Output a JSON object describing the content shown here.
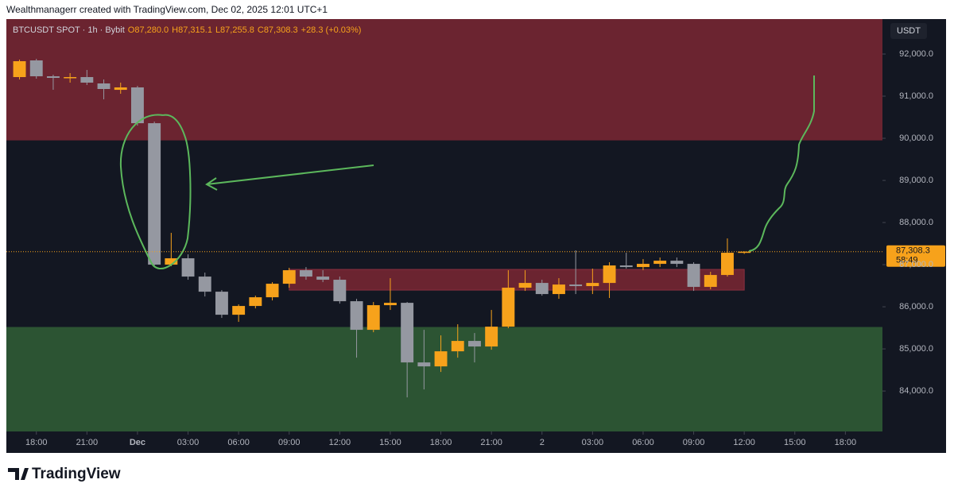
{
  "header": "Wealthmanagerr created with TradingView.com, Dec 02, 2025 12:01 UTC+1",
  "brand": "TradingView",
  "chart_data": {
    "type": "candlestick",
    "symbol": "BTCUSDT SPOT · 1h · Bybit",
    "ohlc_legend": [
      "O87,280.0",
      "H87,315.1",
      "L87,255.8",
      "C87,308.3",
      "+28.3 (+0.03%)"
    ],
    "currency": "USDT",
    "up_color": "#f7a21b",
    "down_color": "#9598a1",
    "grid": false,
    "x": [
      -7,
      -6,
      -5,
      -4,
      -3,
      -2,
      -1,
      0,
      1,
      2,
      3,
      4,
      5,
      6,
      7,
      8,
      9,
      10,
      11,
      12,
      13,
      14,
      15,
      16,
      17,
      18,
      19,
      20,
      21,
      22,
      23,
      24,
      25,
      26,
      27,
      28,
      29,
      30,
      31,
      32,
      33,
      34,
      35,
      36
    ],
    "open": [
      91453,
      91849,
      91472,
      91434,
      91453,
      91302,
      91150,
      91208,
      90358,
      87000,
      87151,
      86717,
      86358,
      85811,
      86019,
      86226,
      86547,
      86868,
      86717,
      86642,
      86132,
      85453,
      86038,
      86094,
      84679,
      84585,
      84943,
      85189,
      85057,
      85528,
      86453,
      86566,
      86302,
      86528,
      86491,
      86566,
      86981,
      86943,
      87019,
      87094,
      87019,
      86472,
      86755,
      87280
    ],
    "high": [
      91868,
      91887,
      91509,
      91547,
      91623,
      91396,
      91321,
      91245,
      90396,
      87755,
      87245,
      86811,
      86396,
      86057,
      86264,
      86585,
      86925,
      86943,
      86868,
      86717,
      86189,
      86113,
      86679,
      86113,
      85453,
      85321,
      85585,
      85377,
      85925,
      86868,
      86868,
      86642,
      86679,
      87340,
      86906,
      87057,
      87283,
      87132,
      87170,
      87170,
      87057,
      86830,
      87623,
      87315.1
    ],
    "low": [
      91396,
      91415,
      91151,
      91321,
      91264,
      90925,
      91057,
      90300,
      86962,
      86962,
      86642,
      86245,
      85736,
      85642,
      85962,
      86151,
      86453,
      86642,
      86585,
      86075,
      84792,
      85396,
      85925,
      83849,
      84038,
      84453,
      84792,
      84679,
      84981,
      85491,
      86377,
      86264,
      86189,
      86302,
      86302,
      86208,
      86906,
      86868,
      86943,
      86943,
      86377,
      86415,
      86717,
      87255.8
    ],
    "close": [
      91830,
      91472,
      91434,
      91453,
      91321,
      91170,
      91208,
      90358,
      87000,
      87151,
      86717,
      86358,
      85811,
      86019,
      86226,
      86547,
      86868,
      86717,
      86642,
      86132,
      85453,
      86038,
      86094,
      84679,
      84585,
      84943,
      85189,
      85057,
      85528,
      86453,
      86566,
      86302,
      86528,
      86491,
      86566,
      86981,
      86943,
      87019,
      87094,
      87019,
      86472,
      86755,
      87283,
      87308.3
    ],
    "xlim": [
      -7.78,
      44.2
    ],
    "ylim": [
      83040,
      92830
    ],
    "xticks": [
      {
        "value": -6,
        "label": "18:00"
      },
      {
        "value": -3,
        "label": "21:00"
      },
      {
        "value": 0,
        "label": "Dec"
      },
      {
        "value": 3,
        "label": "03:00"
      },
      {
        "value": 6,
        "label": "06:00"
      },
      {
        "value": 9,
        "label": "09:00"
      },
      {
        "value": 12,
        "label": "12:00"
      },
      {
        "value": 15,
        "label": "15:00"
      },
      {
        "value": 18,
        "label": "18:00"
      },
      {
        "value": 21,
        "label": "21:00"
      },
      {
        "value": 24,
        "label": "2"
      },
      {
        "value": 27,
        "label": "03:00"
      },
      {
        "value": 30,
        "label": "06:00"
      },
      {
        "value": 33,
        "label": "09:00"
      },
      {
        "value": 36,
        "label": "12:00"
      },
      {
        "value": 39,
        "label": "15:00"
      },
      {
        "value": 42,
        "label": "18:00"
      }
    ],
    "yticks": [
      {
        "value": 84000,
        "label": "84,000.0"
      },
      {
        "value": 85000,
        "label": "85,000.0"
      },
      {
        "value": 86000,
        "label": "86,000.0"
      },
      {
        "value": 87000,
        "label": "87,000.0"
      },
      {
        "value": 88000,
        "label": "88,000.0"
      },
      {
        "value": 89000,
        "label": "89,000.0"
      },
      {
        "value": 90000,
        "label": "90,000.0"
      },
      {
        "value": 91000,
        "label": "91,000.0"
      },
      {
        "value": 92000,
        "label": "92,000.0"
      }
    ],
    "price_label": {
      "value": 87308.3,
      "label": "87,308.3"
    },
    "countdown": "58:49",
    "zones": [
      {
        "y0": 89950,
        "y1": 92830,
        "color": "#6b2430"
      },
      {
        "y0": 83040,
        "y1": 85520,
        "color": "#2c5433"
      },
      {
        "x0": 9,
        "x1": 36,
        "y0": 86396,
        "y1": 86887,
        "color": "#6b2430"
      }
    ]
  }
}
